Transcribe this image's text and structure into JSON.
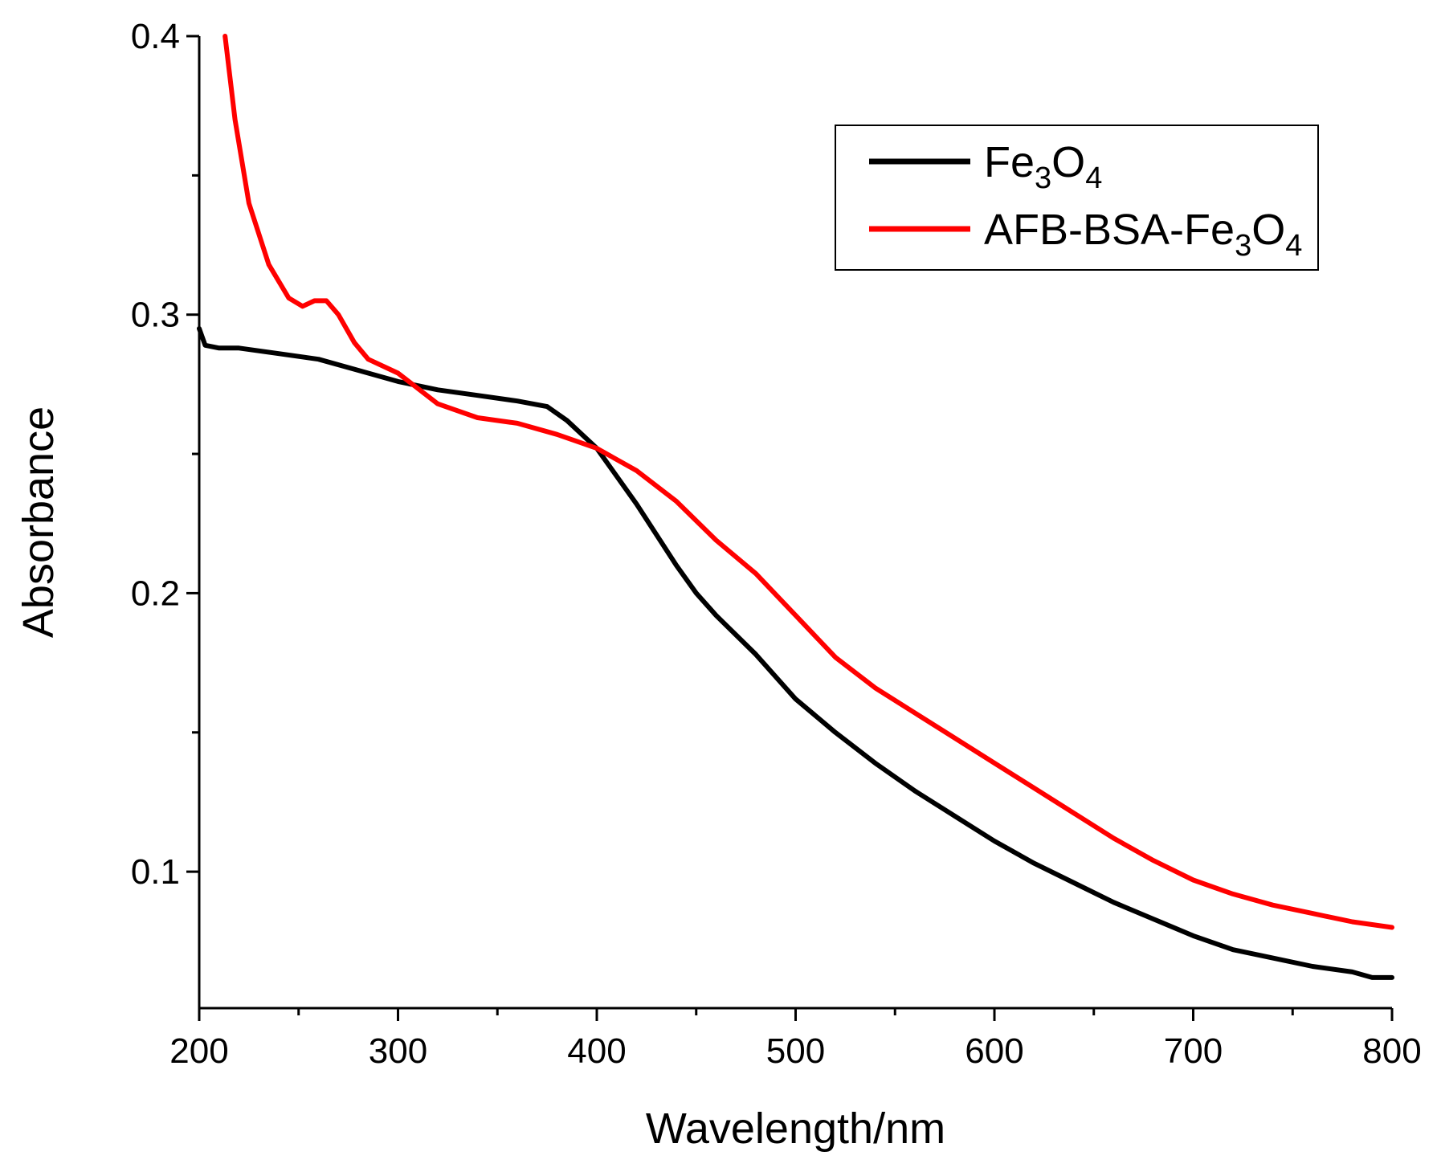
{
  "chart_data": {
    "type": "line",
    "title": "",
    "xlabel": "Wavelength/nm",
    "ylabel": "Absorbance",
    "xlim": [
      200,
      800
    ],
    "ylim": [
      0.051,
      0.4
    ],
    "xticks": [
      200,
      300,
      400,
      500,
      600,
      700,
      800
    ],
    "xtick_labels": [
      "200",
      "300",
      "400",
      "500",
      "600",
      "700",
      "800"
    ],
    "yticks": [
      0.1,
      0.2,
      0.3,
      0.4
    ],
    "ytick_labels": [
      "0.1",
      "0.2",
      "0.3",
      "0.4"
    ],
    "grid": false,
    "legend_position": "top-right",
    "series": [
      {
        "name": "Fe3O4",
        "legend_parts": [
          {
            "text": "Fe",
            "sub": false
          },
          {
            "text": "3",
            "sub": true
          },
          {
            "text": "O",
            "sub": false
          },
          {
            "text": "4",
            "sub": true
          }
        ],
        "color": "#000000",
        "x": [
          200,
          203,
          210,
          220,
          240,
          260,
          280,
          300,
          320,
          340,
          360,
          375,
          385,
          400,
          420,
          440,
          450,
          460,
          480,
          500,
          520,
          540,
          560,
          580,
          600,
          620,
          640,
          660,
          680,
          700,
          720,
          740,
          760,
          780,
          790,
          800
        ],
        "y": [
          0.295,
          0.289,
          0.288,
          0.288,
          0.286,
          0.284,
          0.28,
          0.276,
          0.273,
          0.271,
          0.269,
          0.267,
          0.262,
          0.252,
          0.232,
          0.21,
          0.2,
          0.192,
          0.178,
          0.162,
          0.15,
          0.139,
          0.129,
          0.12,
          0.111,
          0.103,
          0.096,
          0.089,
          0.083,
          0.077,
          0.072,
          0.069,
          0.066,
          0.064,
          0.062,
          0.062
        ]
      },
      {
        "name": "AFB-BSA-Fe3O4",
        "legend_parts": [
          {
            "text": "AFB-BSA-Fe",
            "sub": false
          },
          {
            "text": "3",
            "sub": true
          },
          {
            "text": "O",
            "sub": false
          },
          {
            "text": "4",
            "sub": true
          }
        ],
        "color": "#ff0000",
        "x": [
          213,
          218,
          225,
          235,
          245,
          252,
          258,
          264,
          270,
          278,
          285,
          300,
          320,
          340,
          360,
          380,
          400,
          420,
          440,
          460,
          480,
          500,
          520,
          540,
          560,
          580,
          600,
          620,
          640,
          660,
          680,
          700,
          720,
          740,
          760,
          780,
          800
        ],
        "y": [
          0.4,
          0.37,
          0.34,
          0.318,
          0.306,
          0.303,
          0.305,
          0.305,
          0.3,
          0.29,
          0.284,
          0.279,
          0.268,
          0.263,
          0.261,
          0.257,
          0.252,
          0.244,
          0.233,
          0.219,
          0.207,
          0.192,
          0.177,
          0.166,
          0.157,
          0.148,
          0.139,
          0.13,
          0.121,
          0.112,
          0.104,
          0.097,
          0.092,
          0.088,
          0.085,
          0.082,
          0.08
        ]
      }
    ]
  }
}
